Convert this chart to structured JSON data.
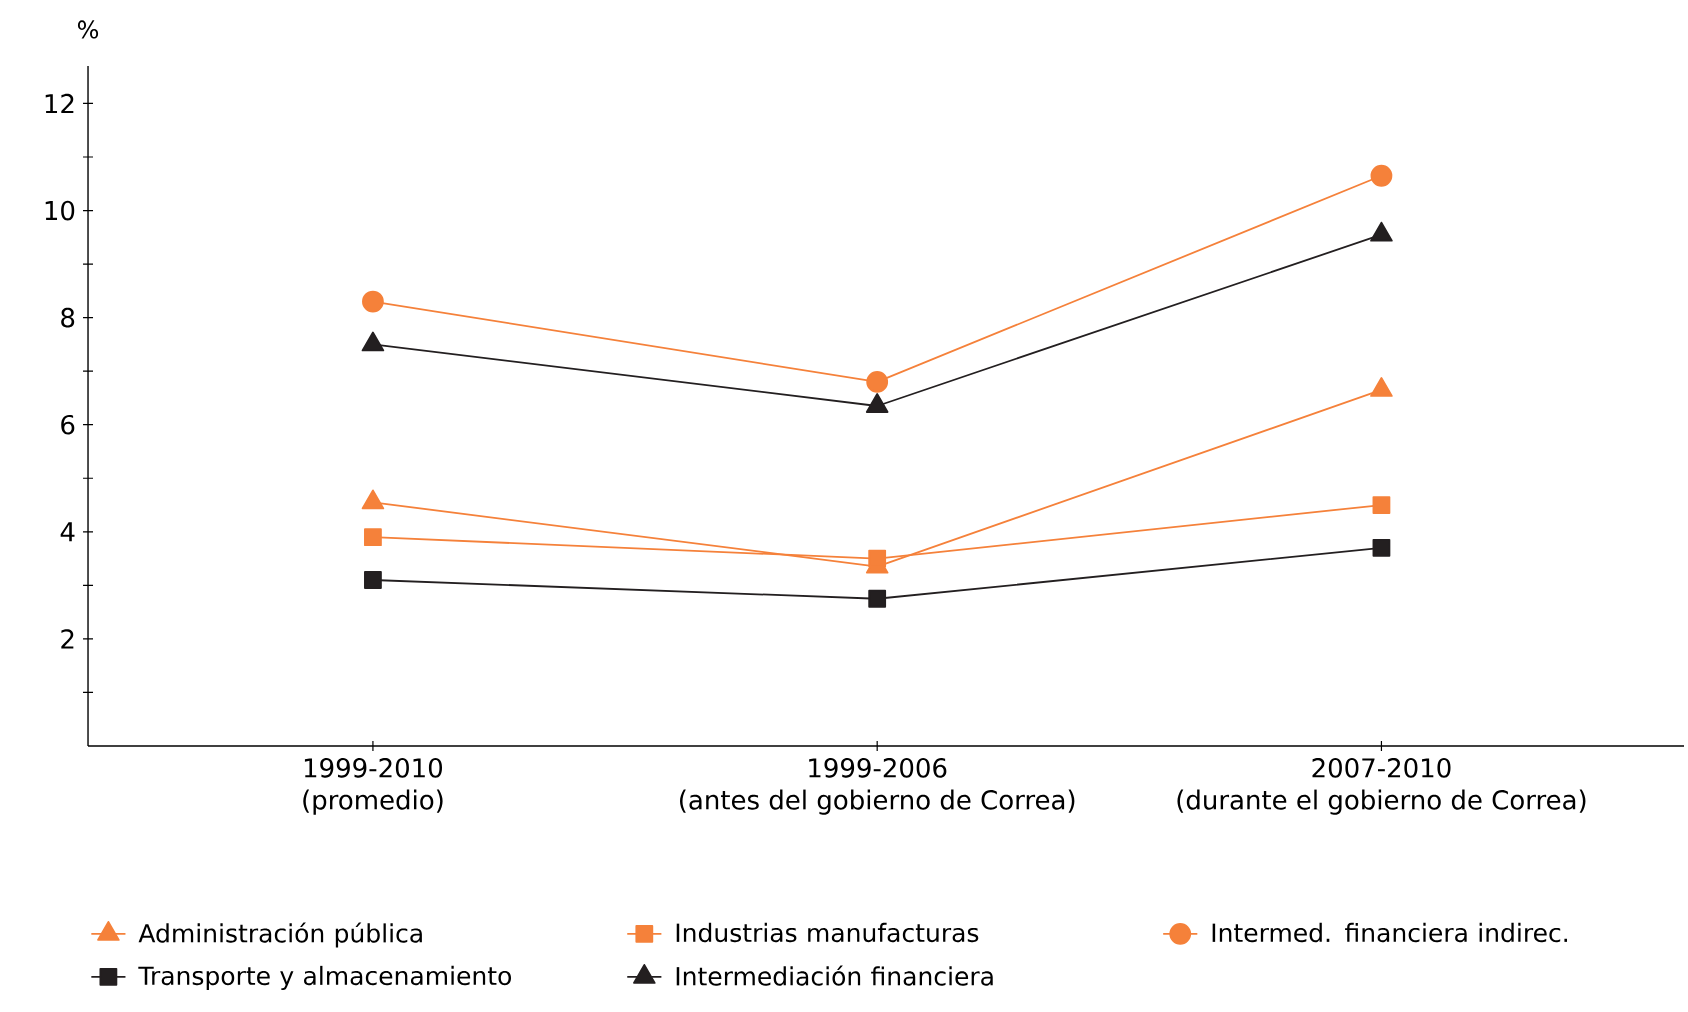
{
  "chart_data": {
    "type": "line",
    "ylabel": "%",
    "categories": [
      "1999-2010\n(promedio)",
      "1999-2006\n(antes del gobierno de Correa)",
      "2007-2010\n(durante el gobierno de Correa)"
    ],
    "ylim": [
      0,
      12.7
    ],
    "yticks": [
      {
        "value": 1,
        "label": null
      },
      2,
      {
        "value": 3,
        "label": null
      },
      4,
      {
        "value": 5,
        "label": null
      },
      6,
      {
        "value": 7,
        "label": null
      },
      8,
      {
        "value": 9,
        "label": null
      },
      10,
      {
        "value": 11,
        "label": null
      },
      12
    ],
    "grid": false,
    "legend": "bottom",
    "line_style": "solid",
    "series": [
      {
        "name": "Administración pública",
        "color": "#f5813a",
        "marker": "triangle",
        "values": [
          4.55,
          3.35,
          6.65
        ]
      },
      {
        "name": "Industrias manufacturas",
        "color": "#f5813a",
        "marker": "square",
        "values": [
          3.9,
          3.5,
          4.5
        ]
      },
      {
        "name": "Intermed. financiera indirec.",
        "color": "#f5813a",
        "marker": "circle",
        "values": [
          8.3,
          6.8,
          10.65
        ]
      },
      {
        "name": "Transporte y almacenamiento",
        "color": "#231f20",
        "marker": "square",
        "values": [
          3.1,
          2.75,
          3.7
        ]
      },
      {
        "name": "Intermediación financiera",
        "color": "#231f20",
        "marker": "triangle",
        "values": [
          7.5,
          6.35,
          9.55
        ]
      }
    ]
  }
}
